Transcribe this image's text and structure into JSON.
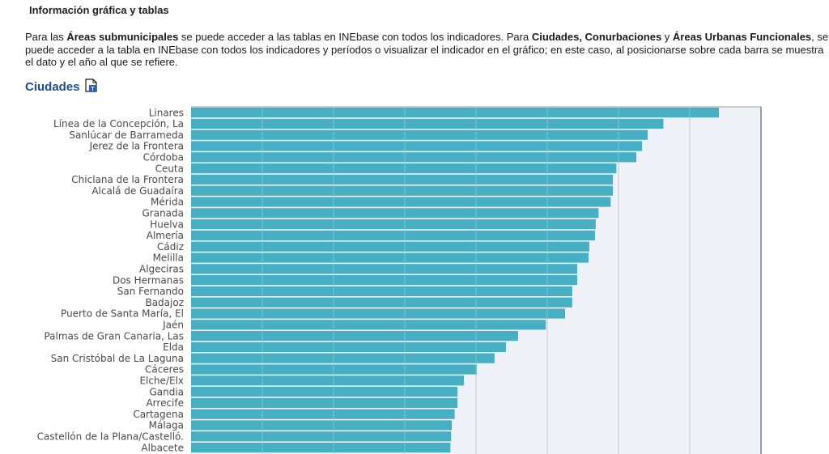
{
  "section": {
    "title": "Información gráfica y tablas"
  },
  "intro": {
    "p1": "Para las ",
    "b1": "Áreas submunicipales",
    "p2": " se puede acceder a las tablas en INEbase con todos los indicadores. Para ",
    "b2": "Ciudades, Conurbaciones",
    "p3": " y ",
    "b3": "Áreas Urbanas Funcionales",
    "p4": ", se puede acceder a la tabla en INEbase con todos los indicadores y períodos o visualizar el indicador en el gráfico; en este caso, al posicionarse sobre cada barra se muestra el dato y el año al que se refiere."
  },
  "chart_heading": {
    "label": "Ciudades",
    "icon": "table-document-icon"
  },
  "colors": {
    "bar": "#46afc3",
    "plot_bg": "#eef1f8",
    "grid": "#d3d6de",
    "heading": "#1a4f8f"
  },
  "chart_data": {
    "type": "bar",
    "orientation": "horizontal",
    "title": "Ciudades",
    "xlabel": "",
    "ylabel": "",
    "grid": true,
    "xlim": [
      0,
      8
    ],
    "x_units_note": "values in gridline units (axis tick labels not visible)",
    "categories": [
      "Linares",
      "Línea de la Concepción, La",
      "Sanlúcar de Barrameda",
      "Jerez de la Frontera",
      "Córdoba",
      "Ceuta",
      "Chiclana de la Frontera",
      "Alcalá de Guadaíra",
      "Mérida",
      "Granada",
      "Huelva",
      "Almería",
      "Cádiz",
      "Melilla",
      "Algeciras",
      "Dos Hermanas",
      "San Fernando",
      "Badajoz",
      "Puerto de Santa María, El",
      "Jaén",
      "Palmas de Gran Canaria, Las",
      "Elda",
      "San Cristóbal de La Laguna",
      "Cáceres",
      "Elche/Elx",
      "Gandia",
      "Arrecife",
      "Cartagena",
      "Málaga",
      "Castellón de la Plana/Castelló.",
      "Albacete"
    ],
    "values": [
      7.41,
      6.63,
      6.41,
      6.33,
      6.25,
      5.97,
      5.92,
      5.92,
      5.89,
      5.72,
      5.68,
      5.67,
      5.59,
      5.58,
      5.42,
      5.42,
      5.35,
      5.35,
      5.25,
      4.98,
      4.59,
      4.42,
      4.26,
      4.01,
      3.83,
      3.74,
      3.74,
      3.7,
      3.66,
      3.65,
      3.64
    ]
  }
}
